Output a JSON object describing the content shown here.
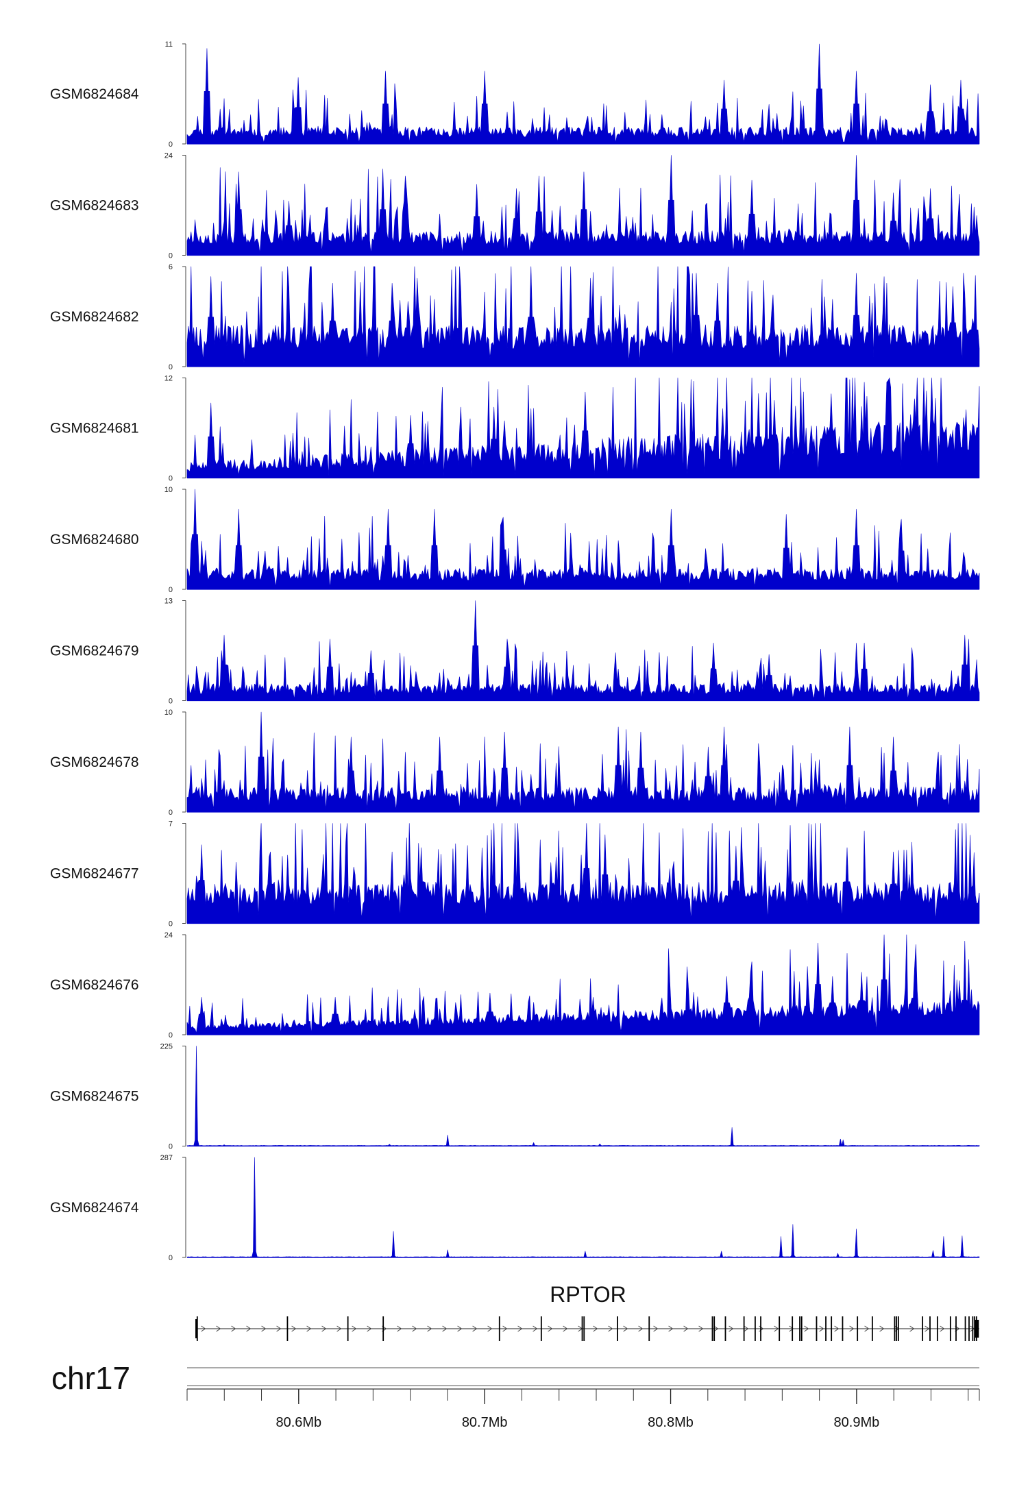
{
  "chart_data": {
    "type": "area",
    "title": "",
    "chromosome": "chr17",
    "region_mb": [
      80.54,
      80.966
    ],
    "color": "#0000CC",
    "tracks": [
      {
        "name": "GSM6824684",
        "ymax": 11,
        "ymin": 0,
        "pattern": "noise",
        "baseline": 0.12,
        "variability": 0.85,
        "seed": 11,
        "peaks": [
          [
            80.551,
            10.5
          ],
          [
            80.6,
            7.3
          ],
          [
            80.647,
            8
          ],
          [
            80.7,
            8
          ],
          [
            80.829,
            7
          ],
          [
            80.88,
            11
          ],
          [
            80.9,
            8
          ],
          [
            80.94,
            6.5
          ],
          [
            80.956,
            7
          ]
        ]
      },
      {
        "name": "GSM6824683",
        "ymax": 24,
        "ymin": 0,
        "pattern": "noise",
        "baseline": 0.18,
        "variability": 0.75,
        "seed": 23,
        "peaks": [
          [
            80.568,
            20
          ],
          [
            80.595,
            13
          ],
          [
            80.645,
            20
          ],
          [
            80.657,
            19
          ],
          [
            80.696,
            17
          ],
          [
            80.717,
            16
          ],
          [
            80.729,
            19
          ],
          [
            80.753,
            20
          ],
          [
            80.8,
            24
          ],
          [
            80.844,
            18
          ],
          [
            80.9,
            24
          ],
          [
            80.92,
            15
          ],
          [
            80.94,
            16
          ]
        ]
      },
      {
        "name": "GSM6824682",
        "ymax": 6,
        "ymin": 0,
        "pattern": "noise",
        "baseline": 0.3,
        "variability": 0.8,
        "seed": 37,
        "peaks": [
          [
            80.553,
            5.4
          ],
          [
            80.618,
            5
          ],
          [
            80.65,
            5
          ],
          [
            80.664,
            5.3
          ],
          [
            80.725,
            5.4
          ],
          [
            80.757,
            5.3
          ],
          [
            80.814,
            5.6
          ],
          [
            80.825,
            5
          ],
          [
            80.9,
            5.6
          ],
          [
            80.952,
            4.8
          ]
        ]
      },
      {
        "name": "GSM6824681",
        "ymax": 12,
        "ymin": 0,
        "pattern": "rising",
        "baseline": 0.2,
        "variability": 0.9,
        "seed": 41,
        "peaks": [
          [
            80.553,
            9
          ],
          [
            80.66,
            7.5
          ],
          [
            80.705,
            8.5
          ],
          [
            80.754,
            10.3
          ],
          [
            80.804,
            7
          ],
          [
            80.847,
            9
          ],
          [
            80.856,
            9.3
          ],
          [
            80.886,
            10.1
          ],
          [
            80.916,
            11.5
          ],
          [
            80.931,
            9.5
          ],
          [
            80.966,
            11
          ]
        ]
      },
      {
        "name": "GSM6824680",
        "ymax": 10,
        "ymin": 0,
        "pattern": "noise",
        "baseline": 0.15,
        "variability": 0.85,
        "seed": 53,
        "peaks": [
          [
            80.544,
            10
          ],
          [
            80.568,
            8
          ],
          [
            80.648,
            8
          ],
          [
            80.673,
            8
          ],
          [
            80.71,
            7.2
          ],
          [
            80.8,
            8
          ],
          [
            80.862,
            7.5
          ],
          [
            80.9,
            8
          ],
          [
            80.924,
            7
          ]
        ]
      },
      {
        "name": "GSM6824679",
        "ymax": 13,
        "ymin": 0,
        "pattern": "noise",
        "baseline": 0.12,
        "variability": 0.85,
        "seed": 67,
        "peaks": [
          [
            80.56,
            8.5
          ],
          [
            80.617,
            8
          ],
          [
            80.639,
            6.5
          ],
          [
            80.695,
            13
          ],
          [
            80.712,
            8
          ],
          [
            80.823,
            7.5
          ],
          [
            80.853,
            6
          ],
          [
            80.904,
            7.5
          ],
          [
            80.958,
            8.5
          ]
        ]
      },
      {
        "name": "GSM6824678",
        "ymax": 10,
        "ymin": 0,
        "pattern": "noise",
        "baseline": 0.18,
        "variability": 0.8,
        "seed": 71,
        "peaks": [
          [
            80.58,
            10
          ],
          [
            80.628,
            7.5
          ],
          [
            80.676,
            7.5
          ],
          [
            80.711,
            8
          ],
          [
            80.772,
            8.5
          ],
          [
            80.784,
            8
          ],
          [
            80.82,
            6.5
          ],
          [
            80.829,
            8.5
          ],
          [
            80.896,
            8.5
          ],
          [
            80.92,
            7.5
          ]
        ]
      },
      {
        "name": "GSM6824677",
        "ymax": 7,
        "ymin": 0,
        "pattern": "noise",
        "baseline": 0.3,
        "variability": 0.75,
        "seed": 83,
        "peaks": [
          [
            80.548,
            5.5
          ],
          [
            80.585,
            5
          ],
          [
            80.666,
            5.3
          ],
          [
            80.755,
            7
          ],
          [
            80.765,
            6.2
          ],
          [
            80.835,
            5.4
          ],
          [
            80.895,
            5.3
          ],
          [
            80.92,
            5
          ]
        ]
      },
      {
        "name": "GSM6824676",
        "ymax": 24,
        "ymin": 0,
        "pattern": "rising",
        "baseline": 0.13,
        "variability": 0.6,
        "seed": 97,
        "peaks": [
          [
            80.548,
            9
          ],
          [
            80.62,
            9
          ],
          [
            80.703,
            10
          ],
          [
            80.758,
            9
          ],
          [
            80.83,
            14
          ],
          [
            80.843,
            15
          ],
          [
            80.879,
            22
          ],
          [
            80.887,
            14
          ],
          [
            80.903,
            15
          ],
          [
            80.915,
            24
          ],
          [
            80.931,
            16
          ],
          [
            80.955,
            13
          ]
        ]
      },
      {
        "name": "GSM6824675",
        "ymax": 225,
        "ymin": 0,
        "pattern": "sparse",
        "baseline": 0.006,
        "variability": 0.6,
        "seed": 101,
        "peaks": [
          [
            80.545,
            225
          ],
          [
            80.56,
            3
          ],
          [
            80.649,
            4
          ],
          [
            80.68,
            25
          ],
          [
            80.726,
            8
          ],
          [
            80.762,
            5
          ],
          [
            80.833,
            42
          ],
          [
            80.891,
            16
          ],
          [
            80.893,
            14
          ]
        ]
      },
      {
        "name": "GSM6824674",
        "ymax": 287,
        "ymin": 0,
        "pattern": "sparse",
        "baseline": 0.006,
        "variability": 0.6,
        "seed": 113,
        "peaks": [
          [
            80.576,
            287
          ],
          [
            80.651,
            75
          ],
          [
            80.68,
            22
          ],
          [
            80.754,
            18
          ],
          [
            80.827,
            18
          ],
          [
            80.859,
            60
          ],
          [
            80.866,
            95
          ],
          [
            80.89,
            12
          ],
          [
            80.9,
            82
          ],
          [
            80.941,
            20
          ],
          [
            80.947,
            60
          ],
          [
            80.957,
            62
          ]
        ]
      }
    ],
    "gene": {
      "name": "RPTOR",
      "strand": "+",
      "start_mb": 80.545,
      "end_mb": 80.966,
      "exons_mb": [
        80.545,
        80.5455,
        80.594,
        80.6265,
        80.6455,
        80.708,
        80.7305,
        80.7525,
        80.7535,
        80.7715,
        80.7885,
        80.8225,
        80.8235,
        80.8295,
        80.8395,
        80.8455,
        80.8485,
        80.8585,
        80.8655,
        80.8695,
        80.8705,
        80.8785,
        80.8835,
        80.8865,
        80.8925,
        80.9005,
        80.9085,
        80.9205,
        80.9215,
        80.9225,
        80.9355,
        80.9395,
        80.9435,
        80.9505,
        80.9535,
        80.9585,
        80.9605,
        80.9625,
        80.9635,
        80.9645,
        80.965
      ]
    },
    "x_axis": {
      "ticks_mb": [
        80.6,
        80.7,
        80.8,
        80.9
      ],
      "tick_labels": [
        "80.6Mb",
        "80.7Mb",
        "80.8Mb",
        "80.9Mb"
      ],
      "minor_step_mb": 0.02
    }
  }
}
